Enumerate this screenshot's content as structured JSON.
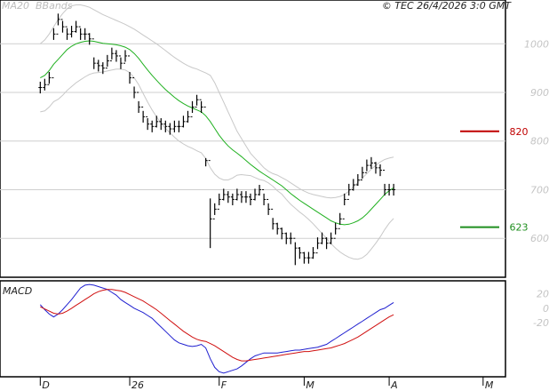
{
  "header": {
    "legend_ma": "MA20",
    "legend_bb": "BBands",
    "copyright": "© TEC 26/4/2026 3:0 GMT"
  },
  "colors": {
    "price": "#000000",
    "ma": "#1fb01f",
    "bbands": "#c8c8c8",
    "grid": "#cfcfcf",
    "resistance": "#c00000",
    "support": "#1f8f1f",
    "macd": "#2020d0",
    "signal": "#d01010",
    "axis": "#000000"
  },
  "chart_data": [
    {
      "type": "line",
      "panel": "price",
      "y_ticks": [
        {
          "v": 1000,
          "t": "1000"
        },
        {
          "v": 900,
          "t": "900"
        },
        {
          "v": 800,
          "t": "800"
        },
        {
          "v": 700,
          "t": "700"
        },
        {
          "v": 600,
          "t": "600"
        }
      ],
      "ylim": [
        520,
        1090
      ],
      "x_ticks": [
        {
          "i": 0,
          "t": "D"
        },
        {
          "i": 20,
          "t": "26"
        },
        {
          "i": 40,
          "t": "F"
        },
        {
          "i": 59,
          "t": "M"
        },
        {
          "i": 78,
          "t": "A"
        },
        {
          "i": 99,
          "t": "M"
        }
      ],
      "xlim": [
        -9,
        104
      ],
      "levels": [
        {
          "name": "resistance",
          "value": 820,
          "label": "820"
        },
        {
          "name": "support",
          "value": 623,
          "label": "623"
        }
      ],
      "close": [
        910,
        916,
        930,
        1020,
        1050,
        1035,
        1020,
        1025,
        1035,
        1020,
        1020,
        1010,
        960,
        955,
        950,
        965,
        980,
        975,
        960,
        975,
        930,
        900,
        870,
        850,
        835,
        830,
        840,
        835,
        830,
        825,
        830,
        830,
        840,
        850,
        870,
        885,
        870,
        760,
        640,
        660,
        680,
        690,
        685,
        680,
        690,
        685,
        685,
        680,
        690,
        700,
        680,
        660,
        630,
        620,
        610,
        600,
        600,
        580,
        570,
        560,
        560,
        570,
        590,
        600,
        590,
        600,
        620,
        640,
        680,
        700,
        710,
        720,
        735,
        750,
        755,
        745,
        740,
        700,
        700,
        700
      ],
      "high": [
        922,
        928,
        942,
        1032,
        1062,
        1047,
        1032,
        1037,
        1047,
        1032,
        1032,
        1022,
        972,
        967,
        962,
        977,
        992,
        987,
        972,
        987,
        942,
        912,
        882,
        862,
        847,
        842,
        852,
        847,
        842,
        837,
        842,
        842,
        852,
        862,
        882,
        895,
        882,
        765,
        682,
        672,
        692,
        702,
        697,
        692,
        702,
        697,
        697,
        692,
        702,
        710,
        692,
        672,
        642,
        632,
        622,
        612,
        612,
        592,
        582,
        572,
        572,
        582,
        602,
        612,
        602,
        612,
        632,
        652,
        692,
        712,
        722,
        732,
        747,
        762,
        767,
        757,
        752,
        712,
        712,
        712
      ],
      "low": [
        898,
        904,
        918,
        1008,
        1038,
        1023,
        1008,
        1013,
        1023,
        1008,
        1008,
        998,
        948,
        943,
        938,
        953,
        968,
        963,
        948,
        963,
        918,
        888,
        858,
        838,
        823,
        818,
        828,
        823,
        818,
        813,
        818,
        818,
        828,
        838,
        858,
        873,
        858,
        748,
        580,
        648,
        668,
        678,
        673,
        668,
        678,
        673,
        673,
        668,
        678,
        688,
        668,
        648,
        618,
        608,
        598,
        588,
        588,
        545,
        558,
        548,
        548,
        558,
        578,
        588,
        578,
        588,
        608,
        628,
        668,
        688,
        698,
        708,
        723,
        738,
        743,
        733,
        728,
        688,
        688,
        688
      ],
      "ma20": [
        930,
        935,
        945,
        958,
        968,
        978,
        988,
        995,
        1000,
        1003,
        1005,
        1006,
        1005,
        1003,
        1001,
        1000,
        999,
        998,
        996,
        993,
        988,
        980,
        970,
        958,
        946,
        935,
        925,
        915,
        906,
        898,
        890,
        883,
        877,
        872,
        868,
        864,
        860,
        852,
        840,
        826,
        812,
        800,
        790,
        782,
        775,
        768,
        760,
        752,
        745,
        738,
        732,
        726,
        720,
        714,
        708,
        700,
        692,
        685,
        678,
        672,
        666,
        660,
        654,
        648,
        642,
        636,
        632,
        629,
        628,
        629,
        632,
        636,
        642,
        650,
        660,
        670,
        680,
        690,
        698,
        704
      ],
      "bb_upper": [
        1000,
        1008,
        1020,
        1035,
        1050,
        1062,
        1072,
        1078,
        1080,
        1080,
        1078,
        1075,
        1070,
        1065,
        1060,
        1056,
        1052,
        1048,
        1044,
        1040,
        1035,
        1030,
        1024,
        1018,
        1012,
        1006,
        1000,
        993,
        986,
        979,
        972,
        966,
        960,
        955,
        951,
        948,
        944,
        940,
        935,
        920,
        900,
        880,
        860,
        840,
        820,
        805,
        790,
        775,
        765,
        755,
        745,
        738,
        733,
        730,
        725,
        720,
        714,
        708,
        702,
        697,
        693,
        690,
        688,
        686,
        684,
        683,
        684,
        686,
        690,
        697,
        706,
        715,
        724,
        733,
        742,
        750,
        757,
        762,
        765,
        767
      ],
      "bb_lower": [
        860,
        862,
        870,
        881,
        886,
        894,
        904,
        912,
        920,
        926,
        932,
        937,
        940,
        941,
        942,
        944,
        946,
        948,
        948,
        946,
        941,
        930,
        916,
        898,
        880,
        864,
        850,
        837,
        826,
        817,
        808,
        800,
        794,
        789,
        785,
        780,
        776,
        764,
        745,
        732,
        724,
        720,
        720,
        724,
        730,
        731,
        730,
        729,
        725,
        721,
        719,
        714,
        707,
        698,
        691,
        680,
        670,
        662,
        654,
        647,
        639,
        630,
        620,
        610,
        600,
        589,
        580,
        572,
        566,
        561,
        558,
        557,
        560,
        567,
        578,
        590,
        603,
        618,
        631,
        641
      ]
    },
    {
      "type": "line",
      "panel": "macd",
      "title": "MACD",
      "y_ticks": [
        {
          "v": 20,
          "t": "20"
        },
        {
          "v": 0,
          "t": "0"
        },
        {
          "v": -20,
          "t": "-20"
        }
      ],
      "ylim": [
        -95,
        38
      ],
      "series": [
        {
          "name": "macd",
          "values": [
            5,
            -2,
            -8,
            -12,
            -8,
            -2,
            5,
            12,
            20,
            28,
            32,
            33,
            32,
            30,
            28,
            26,
            22,
            18,
            12,
            8,
            4,
            0,
            -3,
            -6,
            -10,
            -14,
            -20,
            -26,
            -32,
            -38,
            -44,
            -48,
            -50,
            -52,
            -53,
            -52,
            -50,
            -55,
            -70,
            -82,
            -88,
            -90,
            -88,
            -86,
            -84,
            -80,
            -75,
            -70,
            -66,
            -64,
            -62,
            -62,
            -62,
            -62,
            -61,
            -60,
            -59,
            -58,
            -58,
            -57,
            -56,
            -55,
            -54,
            -52,
            -50,
            -46,
            -42,
            -38,
            -34,
            -30,
            -26,
            -22,
            -18,
            -14,
            -10,
            -6,
            -2,
            0,
            4,
            8
          ]
        },
        {
          "name": "signal",
          "values": [
            2,
            -1,
            -4,
            -7,
            -8,
            -7,
            -4,
            0,
            4,
            8,
            12,
            16,
            20,
            23,
            25,
            26,
            26,
            25,
            24,
            22,
            19,
            16,
            13,
            10,
            6,
            2,
            -2,
            -7,
            -12,
            -17,
            -22,
            -27,
            -32,
            -36,
            -40,
            -43,
            -45,
            -46,
            -49,
            -52,
            -56,
            -60,
            -64,
            -68,
            -71,
            -73,
            -73,
            -72,
            -71,
            -70,
            -69,
            -68,
            -67,
            -66,
            -65,
            -64,
            -63,
            -62,
            -61,
            -60,
            -60,
            -59,
            -58,
            -57,
            -56,
            -55,
            -53,
            -51,
            -49,
            -46,
            -43,
            -40,
            -36,
            -32,
            -28,
            -24,
            -20,
            -16,
            -12,
            -9
          ]
        }
      ]
    }
  ]
}
